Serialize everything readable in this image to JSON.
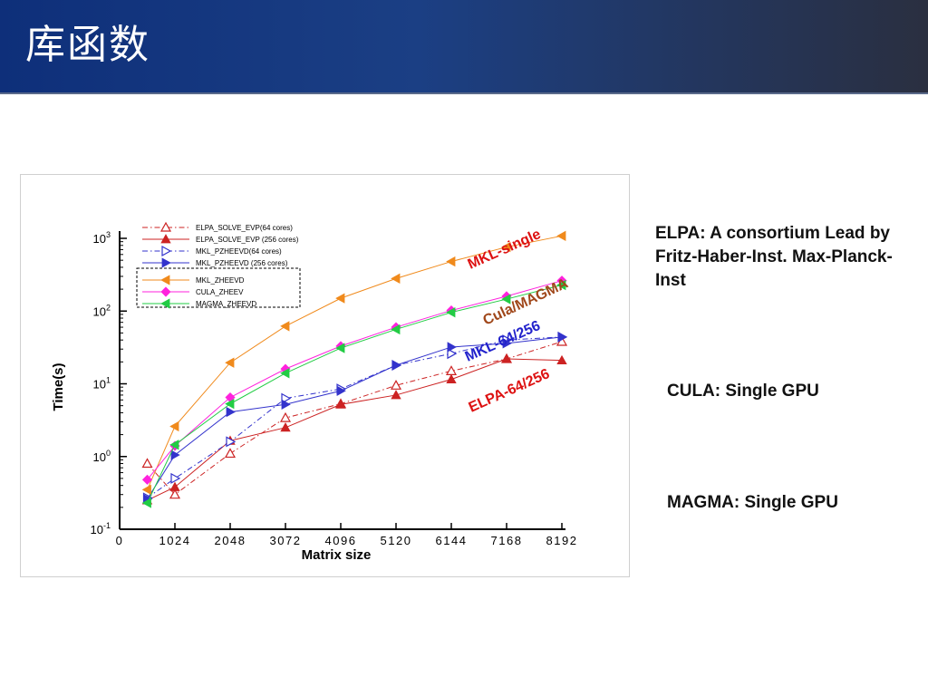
{
  "slide": {
    "title": "库函数"
  },
  "notes": {
    "elpa": "ELPA: A consortium Lead by Fritz-Haber-Inst. Max-Planck-Inst",
    "cula": "CULA: Single GPU",
    "magma": "MAGMA: Single GPU"
  },
  "chart_data": {
    "type": "line",
    "xlabel": "Matrix size",
    "ylabel": "Time(s)",
    "xlim": [
      0,
      8192
    ],
    "ylim": [
      0.1,
      1000
    ],
    "y_scale": "log",
    "x_ticks": [
      "0",
      "1024",
      "2048",
      "3072",
      "4096",
      "5120",
      "6144",
      "7168",
      "8192"
    ],
    "y_ticks": [
      {
        "base": "10",
        "exp": "-1",
        "value": 0.1
      },
      {
        "base": "10",
        "exp": "0",
        "value": 1
      },
      {
        "base": "10",
        "exp": "1",
        "value": 10
      },
      {
        "base": "10",
        "exp": "2",
        "value": 100
      },
      {
        "base": "10",
        "exp": "3",
        "value": 1000
      }
    ],
    "grid": false,
    "legend_position": "top-left",
    "series": [
      {
        "name": "ELPA_SOLVE_EVP(64 cores)",
        "color": "#cc2222",
        "marker": "triangle-up-open",
        "dash": "dashdot",
        "x": [
          512,
          1024,
          2048,
          3072,
          4096,
          5120,
          6144,
          7168,
          8192
        ],
        "y": [
          0.8,
          0.3,
          1.1,
          3.4,
          5.3,
          9.5,
          15,
          22,
          38
        ]
      },
      {
        "name": "ELPA_SOLVE_EVP (256 cores)",
        "color": "#cc2222",
        "marker": "triangle-up-filled",
        "dash": "solid",
        "x": [
          512,
          1024,
          2048,
          3072,
          4096,
          5120,
          6144,
          7168,
          8192
        ],
        "y": [
          0.25,
          0.38,
          1.65,
          2.5,
          5.2,
          7,
          11.5,
          22,
          21
        ]
      },
      {
        "name": "MKL_PZHEEVD(64 cores)",
        "color": "#3333cc",
        "marker": "triangle-right-open",
        "dash": "dashdot",
        "x": [
          512,
          1024,
          2048,
          3072,
          4096,
          5120,
          6144,
          7168,
          8192
        ],
        "y": [
          0.27,
          0.5,
          1.6,
          6.3,
          8.5,
          18,
          26,
          40,
          44
        ]
      },
      {
        "name": "MKL_PZHEEVD (256 cores)",
        "color": "#3333cc",
        "marker": "triangle-right-filled",
        "dash": "solid",
        "x": [
          512,
          1024,
          2048,
          3072,
          4096,
          5120,
          6144,
          7168,
          8192
        ],
        "y": [
          0.26,
          1.05,
          4.1,
          5.2,
          8,
          18,
          32,
          36,
          44
        ]
      },
      {
        "name": "MKL_ZHEEVD",
        "color": "#f08a1c",
        "marker": "triangle-left-filled",
        "dash": "solid",
        "x": [
          512,
          1024,
          2048,
          3072,
          4096,
          5120,
          6144,
          7168,
          8192
        ],
        "y": [
          0.35,
          2.6,
          19.5,
          62,
          150,
          280,
          480,
          760,
          1080
        ]
      },
      {
        "name": "CULA_ZHEEV",
        "color": "#ff22dd",
        "marker": "diamond",
        "dash": "solid",
        "x": [
          512,
          1024,
          2048,
          3072,
          4096,
          5120,
          6144,
          7168,
          8192
        ],
        "y": [
          0.48,
          1.4,
          6.5,
          16,
          33,
          60,
          102,
          160,
          262
        ]
      },
      {
        "name": "MAGMA_ZHEEVD",
        "color": "#22cc44",
        "marker": "triangle-left-filled",
        "dash": "solid",
        "x": [
          512,
          1024,
          2048,
          3072,
          4096,
          5120,
          6144,
          7168,
          8192
        ],
        "y": [
          0.23,
          1.45,
          5.3,
          14,
          31,
          56,
          96,
          146,
          228
        ]
      }
    ],
    "annotations": [
      {
        "text": "MKL-single",
        "color": "#dd1111"
      },
      {
        "text": "Cula/MAGMA",
        "color": "#a0471a"
      },
      {
        "text": "MKL-64/256",
        "color": "#2222cc"
      },
      {
        "text": "ELPA-64/256",
        "color": "#dd1111"
      }
    ]
  }
}
